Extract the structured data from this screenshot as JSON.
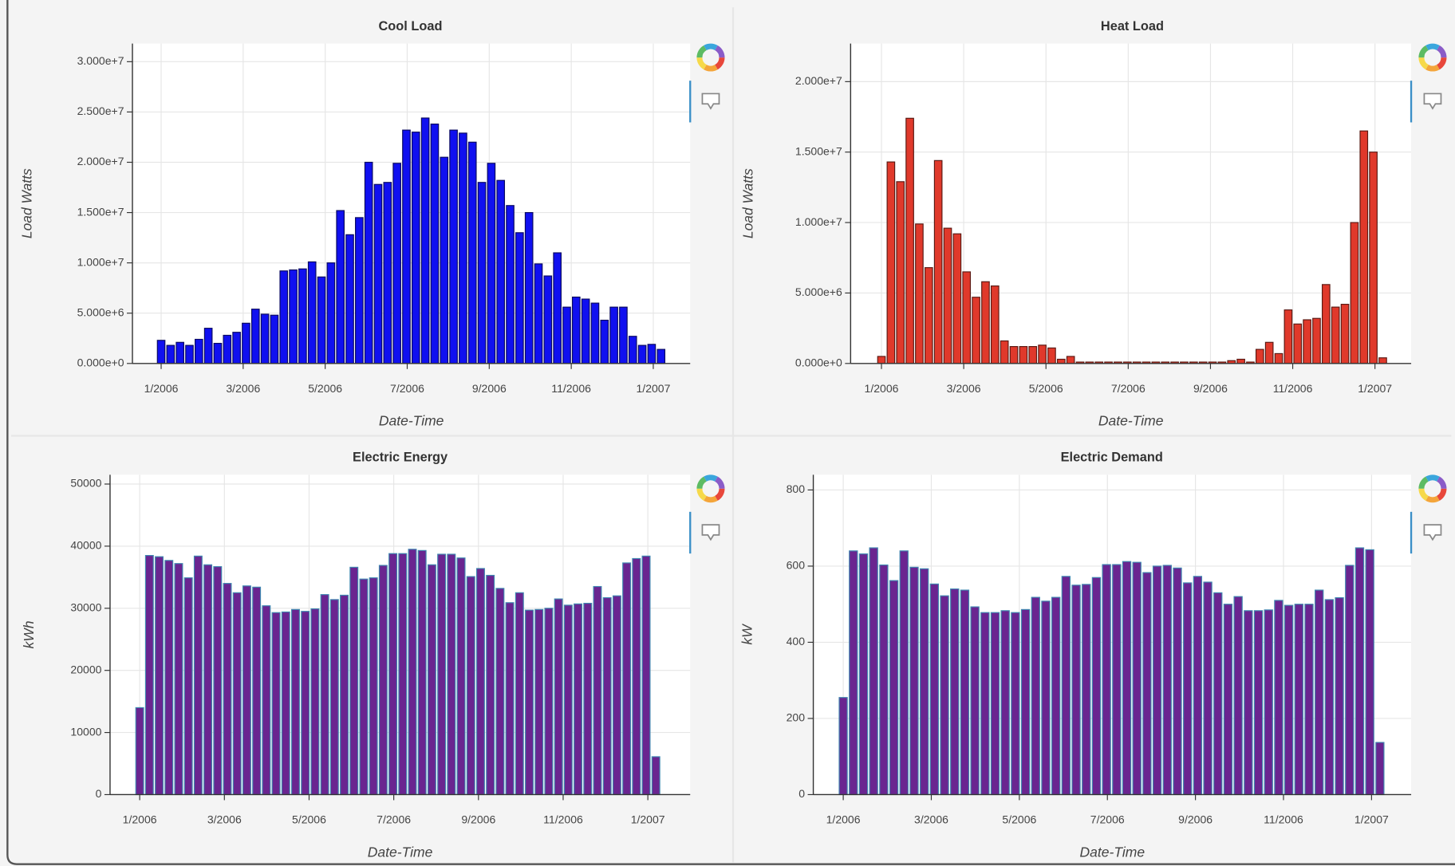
{
  "chart_data": [
    {
      "type": "bar",
      "title": "Cool Load",
      "xlabel": "Date-Time",
      "ylabel": "Load Watts",
      "x": [
        0,
        0.23,
        0.46,
        0.69,
        0.92,
        1.15,
        1.38,
        1.61,
        1.84,
        2.07,
        2.3,
        2.53,
        2.76,
        2.99,
        3.22,
        3.45,
        3.68,
        3.91,
        4.14,
        4.37,
        4.6,
        4.83,
        5.06,
        5.29,
        5.52,
        5.75,
        5.98,
        6.21,
        6.44,
        6.67,
        6.9,
        7.13,
        7.36,
        7.59,
        7.82,
        8.05,
        8.28,
        8.51,
        8.74,
        8.97,
        9.2,
        9.43,
        9.66,
        9.89,
        10.12,
        10.35,
        10.58,
        10.81,
        11.04,
        11.27,
        11.5,
        11.73,
        11.96,
        12.19
      ],
      "values": [
        2300000,
        1800000,
        2100000,
        1800000,
        2400000,
        3500000,
        2000000,
        2800000,
        3100000,
        4000000,
        5400000,
        4900000,
        4800000,
        9200000,
        9300000,
        9400000,
        10100000,
        8600000,
        10000000,
        15200000,
        12800000,
        14500000,
        20000000,
        17800000,
        18000000,
        19900000,
        23200000,
        23000000,
        24400000,
        23800000,
        20500000,
        23200000,
        22900000,
        22000000,
        18000000,
        19900000,
        18200000,
        15700000,
        13000000,
        15000000,
        9900000,
        8700000,
        11000000,
        5600000,
        6600000,
        6400000,
        6000000,
        4300000,
        5600000,
        5600000,
        2700000,
        1800000,
        1900000,
        1400000
      ],
      "color": "#1010f0",
      "edgecolor": "#0a0a60",
      "xlim": [
        -0.7,
        12.9
      ],
      "xticks": [
        {
          "value": 0,
          "label": "1/2006"
        },
        {
          "value": 2,
          "label": "3/2006"
        },
        {
          "value": 4,
          "label": "5/2006"
        },
        {
          "value": 6,
          "label": "7/2006"
        },
        {
          "value": 8,
          "label": "9/2006"
        },
        {
          "value": 10,
          "label": "11/2006"
        },
        {
          "value": 12,
          "label": "1/2007"
        }
      ],
      "ylim": [
        0,
        31800000
      ],
      "yticks": [
        {
          "value": 0,
          "label": "0.000e+0"
        },
        {
          "value": 5000000,
          "label": "5.000e+6"
        },
        {
          "value": 10000000,
          "label": "1.000e+7"
        },
        {
          "value": 15000000,
          "label": "1.500e+7"
        },
        {
          "value": 20000000,
          "label": "2.000e+7"
        },
        {
          "value": 25000000,
          "label": "2.500e+7"
        },
        {
          "value": 30000000,
          "label": "3.000e+7"
        }
      ],
      "grid": true
    },
    {
      "type": "bar",
      "title": "Heat Load",
      "xlabel": "Date-Time",
      "ylabel": "Load Watts",
      "x": [
        0,
        0.23,
        0.46,
        0.69,
        0.92,
        1.15,
        1.38,
        1.61,
        1.84,
        2.07,
        2.3,
        2.53,
        2.76,
        2.99,
        3.22,
        3.45,
        3.68,
        3.91,
        4.14,
        4.37,
        4.6,
        4.83,
        5.06,
        5.29,
        5.52,
        5.75,
        5.98,
        6.21,
        6.44,
        6.67,
        6.9,
        7.13,
        7.36,
        7.59,
        7.82,
        8.05,
        8.28,
        8.51,
        8.74,
        8.97,
        9.2,
        9.43,
        9.66,
        9.89,
        10.12,
        10.35,
        10.58,
        10.81,
        11.04,
        11.27,
        11.5,
        11.73,
        11.96,
        12.19
      ],
      "values": [
        500000,
        14300000,
        12900000,
        17400000,
        9900000,
        6800000,
        14400000,
        9600000,
        9200000,
        6500000,
        4700000,
        5800000,
        5500000,
        1600000,
        1200000,
        1200000,
        1200000,
        1300000,
        1100000,
        300000,
        500000,
        100000,
        100000,
        100000,
        100000,
        100000,
        100000,
        100000,
        100000,
        100000,
        100000,
        100000,
        100000,
        100000,
        100000,
        100000,
        100000,
        200000,
        300000,
        100000,
        1000000,
        1500000,
        700000,
        3800000,
        2800000,
        3100000,
        3200000,
        5600000,
        4000000,
        4200000,
        10000000,
        16500000,
        15000000,
        400000
      ],
      "color": "#e0392b",
      "edgecolor": "#5a1a14",
      "xlim": [
        -0.75,
        12.88
      ],
      "xticks": [
        {
          "value": 0,
          "label": "1/2006"
        },
        {
          "value": 2,
          "label": "3/2006"
        },
        {
          "value": 4,
          "label": "5/2006"
        },
        {
          "value": 6,
          "label": "7/2006"
        },
        {
          "value": 8,
          "label": "9/2006"
        },
        {
          "value": 10,
          "label": "11/2006"
        },
        {
          "value": 12,
          "label": "1/2007"
        }
      ],
      "ylim": [
        0,
        22700000
      ],
      "yticks": [
        {
          "value": 0,
          "label": "0.000e+0"
        },
        {
          "value": 5000000,
          "label": "5.000e+6"
        },
        {
          "value": 10000000,
          "label": "1.000e+7"
        },
        {
          "value": 15000000,
          "label": "1.500e+7"
        },
        {
          "value": 20000000,
          "label": "2.000e+7"
        }
      ],
      "grid": true
    },
    {
      "type": "bar",
      "title": "Electric Energy",
      "xlabel": "Date-Time",
      "ylabel": "kWh",
      "x": [
        0,
        0.23,
        0.46,
        0.69,
        0.92,
        1.15,
        1.38,
        1.61,
        1.84,
        2.07,
        2.3,
        2.53,
        2.76,
        2.99,
        3.22,
        3.45,
        3.68,
        3.91,
        4.14,
        4.37,
        4.6,
        4.83,
        5.06,
        5.29,
        5.52,
        5.75,
        5.98,
        6.21,
        6.44,
        6.67,
        6.9,
        7.13,
        7.36,
        7.59,
        7.82,
        8.05,
        8.28,
        8.51,
        8.74,
        8.97,
        9.2,
        9.43,
        9.66,
        9.89,
        10.12,
        10.35,
        10.58,
        10.81,
        11.04,
        11.27,
        11.5,
        11.73,
        11.96,
        12.19
      ],
      "values": [
        14000,
        38500,
        38300,
        37700,
        37200,
        34900,
        38400,
        37000,
        36700,
        34000,
        32500,
        33600,
        33400,
        30400,
        29300,
        29400,
        29800,
        29500,
        29900,
        32200,
        31400,
        32100,
        36600,
        34700,
        34900,
        36900,
        38800,
        38800,
        39500,
        39300,
        37000,
        38700,
        38700,
        38100,
        35100,
        36400,
        35300,
        33200,
        30900,
        32500,
        29700,
        29800,
        30000,
        31500,
        30500,
        30700,
        30800,
        33500,
        31700,
        32000,
        37300,
        38000,
        38400,
        6100
      ],
      "color": "#6a2590",
      "edgecolor": "#3f86b0",
      "xlim": [
        -0.7,
        13.0
      ],
      "xticks": [
        {
          "value": 0,
          "label": "1/2006"
        },
        {
          "value": 2,
          "label": "3/2006"
        },
        {
          "value": 4,
          "label": "5/2006"
        },
        {
          "value": 6,
          "label": "7/2006"
        },
        {
          "value": 8,
          "label": "9/2006"
        },
        {
          "value": 10,
          "label": "11/2006"
        },
        {
          "value": 12,
          "label": "1/2007"
        }
      ],
      "ylim": [
        0,
        51500
      ],
      "yticks": [
        0,
        10000,
        20000,
        30000,
        40000,
        50000
      ],
      "grid": true
    },
    {
      "type": "bar",
      "title": "Electric Demand",
      "xlabel": "Date-Time",
      "ylabel": "kW",
      "x": [
        0,
        0.23,
        0.46,
        0.69,
        0.92,
        1.15,
        1.38,
        1.61,
        1.84,
        2.07,
        2.3,
        2.53,
        2.76,
        2.99,
        3.22,
        3.45,
        3.68,
        3.91,
        4.14,
        4.37,
        4.6,
        4.83,
        5.06,
        5.29,
        5.52,
        5.75,
        5.98,
        6.21,
        6.44,
        6.67,
        6.9,
        7.13,
        7.36,
        7.59,
        7.82,
        8.05,
        8.28,
        8.51,
        8.74,
        8.97,
        9.2,
        9.43,
        9.66,
        9.89,
        10.12,
        10.35,
        10.58,
        10.81,
        11.04,
        11.27,
        11.5,
        11.73,
        11.96,
        12.19
      ],
      "values": [
        255,
        640,
        632,
        648,
        603,
        562,
        640,
        597,
        593,
        553,
        522,
        540,
        537,
        493,
        478,
        478,
        483,
        478,
        486,
        518,
        508,
        518,
        573,
        550,
        552,
        570,
        604,
        604,
        612,
        610,
        583,
        600,
        602,
        595,
        556,
        573,
        558,
        530,
        500,
        520,
        483,
        483,
        485,
        510,
        497,
        500,
        500,
        537,
        512,
        517,
        602,
        648,
        643,
        137
      ],
      "color": "#6a2590",
      "edgecolor": "#3f86b0",
      "xlim": [
        -0.68,
        12.9
      ],
      "xticks": [
        {
          "value": 0,
          "label": "1/2006"
        },
        {
          "value": 2,
          "label": "3/2006"
        },
        {
          "value": 4,
          "label": "5/2006"
        },
        {
          "value": 6,
          "label": "7/2006"
        },
        {
          "value": 8,
          "label": "9/2006"
        },
        {
          "value": 10,
          "label": "11/2006"
        },
        {
          "value": 12,
          "label": "1/2007"
        }
      ],
      "ylim": [
        0,
        840
      ],
      "yticks": [
        0,
        200,
        400,
        600,
        800
      ],
      "grid": true
    }
  ]
}
